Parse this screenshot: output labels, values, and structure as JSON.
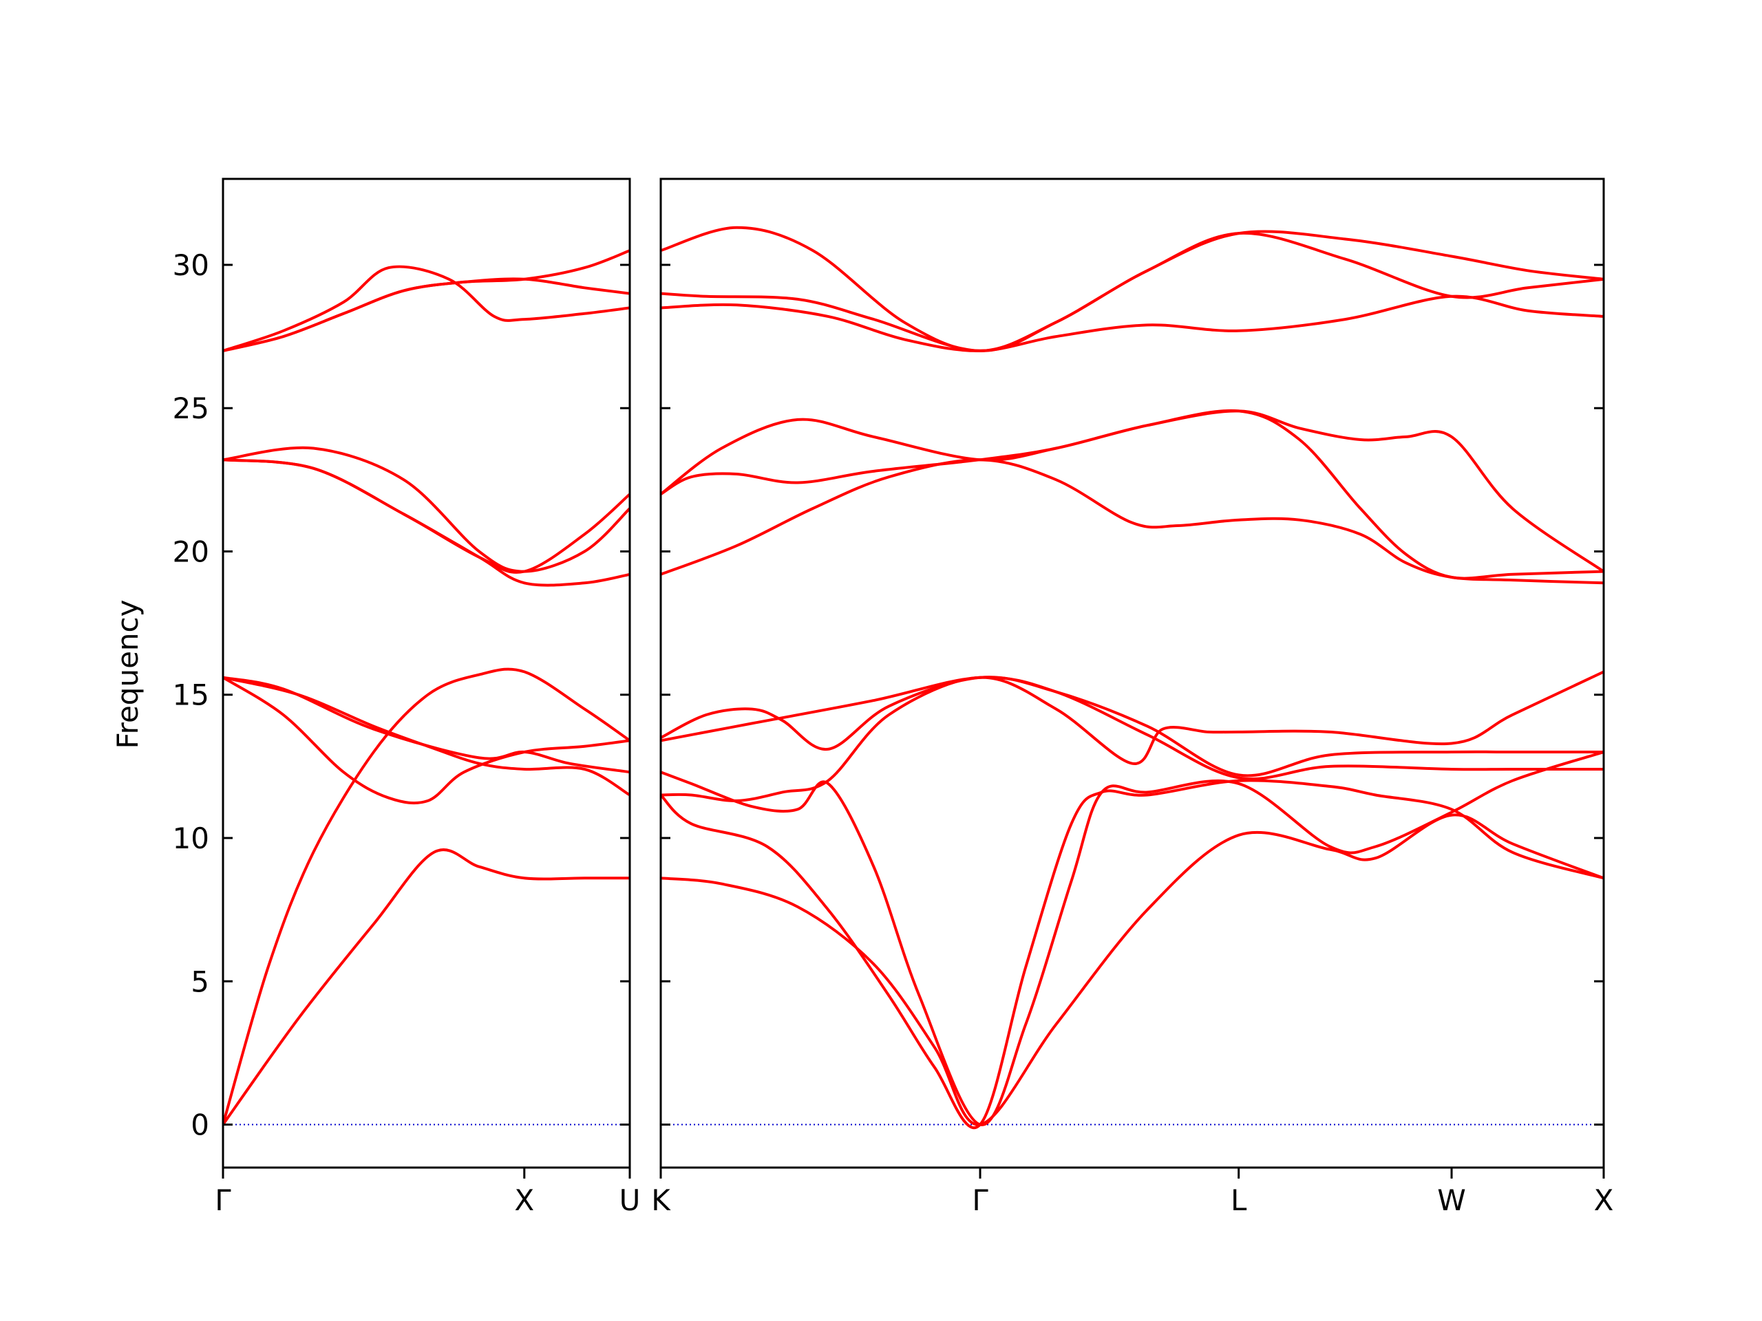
{
  "chart_data": {
    "type": "line",
    "ylabel": "Frequency",
    "ylim": [
      -1.5,
      33
    ],
    "yticks": [
      0,
      5,
      10,
      15,
      20,
      25,
      30
    ],
    "grid": false,
    "legend": "none",
    "colors": {
      "band": "#ff0000",
      "zero_line": "#0000cc",
      "axis": "#000000"
    },
    "panels": [
      {
        "name": "left",
        "xlim": [
          0,
          1.35
        ],
        "xticks": [
          {
            "x": 0,
            "label": "Γ"
          },
          {
            "x": 1.0,
            "label": "X"
          },
          {
            "x": 1.35,
            "label": "U"
          }
        ],
        "series": [
          {
            "x": [
              0,
              0.25,
              0.5,
              0.7,
              0.85,
              1.0,
              1.2,
              1.35
            ],
            "y": [
              0,
              3.7,
              7.0,
              9.5,
              9.0,
              8.6,
              8.6,
              8.6
            ]
          },
          {
            "x": [
              0,
              0.15,
              0.3,
              0.5,
              0.68,
              0.85,
              1.0,
              1.2,
              1.35
            ],
            "y": [
              0,
              5.5,
              9.5,
              13.0,
              15.0,
              15.7,
              15.8,
              14.5,
              13.4
            ]
          },
          {
            "x": [
              0,
              0.2,
              0.4,
              0.55,
              0.68,
              0.8,
              1.0,
              1.2,
              1.35
            ],
            "y": [
              15.6,
              14.3,
              12.3,
              11.4,
              11.3,
              12.3,
              13.0,
              13.2,
              13.4
            ]
          },
          {
            "x": [
              0,
              0.25,
              0.5,
              0.68,
              0.85,
              1.0,
              1.2,
              1.35
            ],
            "y": [
              15.6,
              15.0,
              13.9,
              13.2,
              12.6,
              12.4,
              12.4,
              11.5
            ]
          },
          {
            "x": [
              0,
              0.2,
              0.5,
              0.85,
              1.0,
              1.15,
              1.35
            ],
            "y": [
              15.6,
              15.2,
              13.8,
              12.8,
              13.0,
              12.6,
              12.3
            ]
          },
          {
            "x": [
              0,
              0.3,
              0.6,
              0.85,
              1.0,
              1.2,
              1.35
            ],
            "y": [
              23.2,
              22.9,
              21.3,
              19.8,
              18.9,
              18.9,
              19.2
            ]
          },
          {
            "x": [
              0,
              0.3,
              0.6,
              0.85,
              1.0,
              1.2,
              1.35
            ],
            "y": [
              23.2,
              23.6,
              22.5,
              20.0,
              19.3,
              20.0,
              21.5
            ]
          },
          {
            "x": [
              0,
              0.3,
              0.6,
              0.85,
              1.0,
              1.2,
              1.35
            ],
            "y": [
              23.2,
              22.9,
              21.3,
              19.8,
              19.3,
              20.6,
              22.0
            ]
          },
          {
            "x": [
              0,
              0.2,
              0.4,
              0.55,
              0.75,
              0.9,
              1.0,
              1.2,
              1.35
            ],
            "y": [
              27.0,
              27.7,
              28.7,
              29.9,
              29.5,
              28.2,
              28.1,
              28.3,
              28.5
            ]
          },
          {
            "x": [
              0,
              0.2,
              0.4,
              0.6,
              0.8,
              1.0,
              1.2,
              1.35
            ],
            "y": [
              27.0,
              27.5,
              28.3,
              29.1,
              29.4,
              29.5,
              29.2,
              29.0
            ]
          },
          {
            "x": [
              0,
              0.2,
              0.4,
              0.6,
              0.8,
              1.0,
              1.2,
              1.35
            ],
            "y": [
              27.0,
              27.5,
              28.3,
              29.1,
              29.4,
              29.5,
              29.9,
              30.5
            ]
          }
        ]
      },
      {
        "name": "right",
        "xlim": [
          0,
          3.1
        ],
        "xticks": [
          {
            "x": 0,
            "label": "K"
          },
          {
            "x": 1.05,
            "label": "Γ"
          },
          {
            "x": 1.9,
            "label": "L"
          },
          {
            "x": 2.6,
            "label": "W"
          },
          {
            "x": 3.1,
            "label": "X"
          }
        ],
        "series": [
          {
            "x": [
              0,
              0.2,
              0.45,
              0.7,
              0.9,
              1.05,
              1.3,
              1.6,
              1.9,
              2.2,
              2.35,
              2.6,
              2.8,
              3.1
            ],
            "y": [
              8.6,
              8.4,
              7.6,
              5.6,
              2.7,
              0,
              3.5,
              7.5,
              10.1,
              9.6,
              9.3,
              10.8,
              9.8,
              8.6
            ]
          },
          {
            "x": [
              0,
              0.1,
              0.35,
              0.55,
              0.75,
              0.9,
              1.05,
              1.2,
              1.35,
              1.45,
              1.6,
              1.9,
              2.2,
              2.35,
              2.6,
              2.8,
              3.1
            ],
            "y": [
              11.5,
              10.5,
              9.7,
              7.5,
              4.5,
              2.0,
              0,
              5.5,
              10.5,
              11.6,
              11.5,
              12.0,
              11.8,
              11.5,
              11.0,
              9.5,
              8.6
            ]
          },
          {
            "x": [
              0,
              0.1,
              0.3,
              0.45,
              0.55,
              0.7,
              0.85,
              1.05,
              1.2,
              1.35,
              1.45,
              1.6,
              1.9,
              2.2,
              2.35,
              2.6,
              2.8,
              3.1
            ],
            "y": [
              12.3,
              11.9,
              11.1,
              11.0,
              11.9,
              9.0,
              4.5,
              0,
              3.5,
              8.5,
              11.6,
              11.6,
              11.9,
              9.7,
              9.7,
              10.9,
              12.0,
              13.0
            ]
          },
          {
            "x": [
              0,
              0.1,
              0.25,
              0.4,
              0.55,
              0.75,
              1.05,
              1.3,
              1.55,
              1.65,
              1.8,
              1.9,
              2.2,
              2.6,
              2.8,
              3.1
            ],
            "y": [
              11.5,
              11.5,
              11.3,
              11.6,
              12.0,
              14.3,
              15.6,
              14.5,
              12.6,
              13.8,
              13.7,
              13.7,
              13.7,
              13.3,
              14.3,
              15.8
            ]
          },
          {
            "x": [
              0,
              0.15,
              0.3,
              0.4,
              0.55,
              0.75,
              1.05,
              1.3,
              1.6,
              1.9,
              2.2,
              2.6,
              2.8,
              3.1
            ],
            "y": [
              13.5,
              14.3,
              14.5,
              14.1,
              13.1,
              14.6,
              15.6,
              15.1,
              13.9,
              12.2,
              12.9,
              13.0,
              13.0,
              13.0
            ]
          },
          {
            "x": [
              0,
              0.3,
              0.7,
              1.05,
              1.3,
              1.6,
              1.9,
              2.2,
              2.6,
              2.8,
              3.1
            ],
            "y": [
              13.4,
              14.0,
              14.8,
              15.6,
              15.1,
              13.6,
              12.1,
              12.5,
              12.4,
              12.4,
              12.4
            ]
          },
          {
            "x": [
              0,
              0.25,
              0.5,
              0.75,
              1.05,
              1.3,
              1.55,
              1.7,
              1.9,
              2.1,
              2.3,
              2.45,
              2.6,
              2.8,
              3.1
            ],
            "y": [
              19.2,
              20.2,
              21.5,
              22.6,
              23.2,
              22.5,
              21.0,
              20.9,
              21.1,
              21.1,
              20.6,
              19.6,
              19.1,
              19.0,
              18.9
            ]
          },
          {
            "x": [
              0,
              0.1,
              0.25,
              0.45,
              0.7,
              1.05,
              1.3,
              1.6,
              1.9,
              2.1,
              2.3,
              2.45,
              2.6,
              2.8,
              3.1
            ],
            "y": [
              22.0,
              22.6,
              22.7,
              22.4,
              22.8,
              23.2,
              23.6,
              24.4,
              24.9,
              23.9,
              21.5,
              19.9,
              19.1,
              19.2,
              19.3
            ]
          },
          {
            "x": [
              0,
              0.2,
              0.45,
              0.7,
              1.05,
              1.3,
              1.6,
              1.9,
              2.1,
              2.3,
              2.45,
              2.6,
              2.8,
              3.1
            ],
            "y": [
              22.0,
              23.6,
              24.6,
              24.0,
              23.2,
              23.6,
              24.4,
              24.9,
              24.3,
              23.9,
              24.0,
              24.0,
              21.5,
              19.3
            ]
          },
          {
            "x": [
              0,
              0.25,
              0.55,
              0.8,
              1.05,
              1.3,
              1.6,
              1.9,
              2.25,
              2.6,
              2.85,
              3.1
            ],
            "y": [
              28.5,
              28.6,
              28.2,
              27.4,
              27.0,
              27.5,
              27.9,
              27.7,
              28.1,
              28.9,
              28.4,
              28.2
            ]
          },
          {
            "x": [
              0,
              0.15,
              0.45,
              0.7,
              1.05,
              1.3,
              1.6,
              1.9,
              2.25,
              2.6,
              2.85,
              3.1
            ],
            "y": [
              29.0,
              28.9,
              28.8,
              28.1,
              27.0,
              28.0,
              29.8,
              31.1,
              30.2,
              28.9,
              29.2,
              29.5
            ]
          },
          {
            "x": [
              0,
              0.25,
              0.5,
              0.8,
              1.05,
              1.3,
              1.6,
              1.9,
              2.25,
              2.6,
              2.85,
              3.1
            ],
            "y": [
              30.5,
              31.3,
              30.5,
              28.0,
              27.0,
              28.0,
              29.8,
              31.1,
              30.9,
              30.3,
              29.8,
              29.5
            ]
          }
        ]
      }
    ]
  }
}
